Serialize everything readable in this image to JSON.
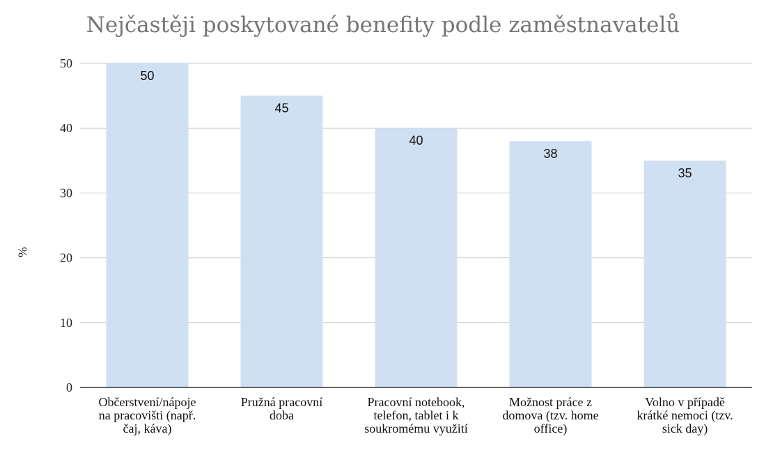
{
  "chart_data": {
    "type": "bar",
    "title": "Nejčastěji poskytované benefity podle zaměstnavatelů",
    "xlabel": "",
    "ylabel": "%",
    "ylim": [
      0,
      50
    ],
    "yticks": [
      "0",
      "10",
      "20",
      "30",
      "40",
      "50"
    ],
    "grid": true,
    "legend": "none",
    "bar_color": "#cfe0f3",
    "categories": [
      "Občerstvení/nápoje na pracovišti (např. čaj, káva)",
      "Pružná pracovní doba",
      "Pracovní notebook, telefon, tablet i k soukromému využití",
      "Možnost práce z domova (tzv. home office)",
      "Volno v případě krátké nemoci (tzv. sick day)"
    ],
    "values": [
      50,
      45,
      40,
      38,
      35
    ],
    "data_labels": [
      "50",
      "45",
      "40",
      "38",
      "35"
    ]
  }
}
